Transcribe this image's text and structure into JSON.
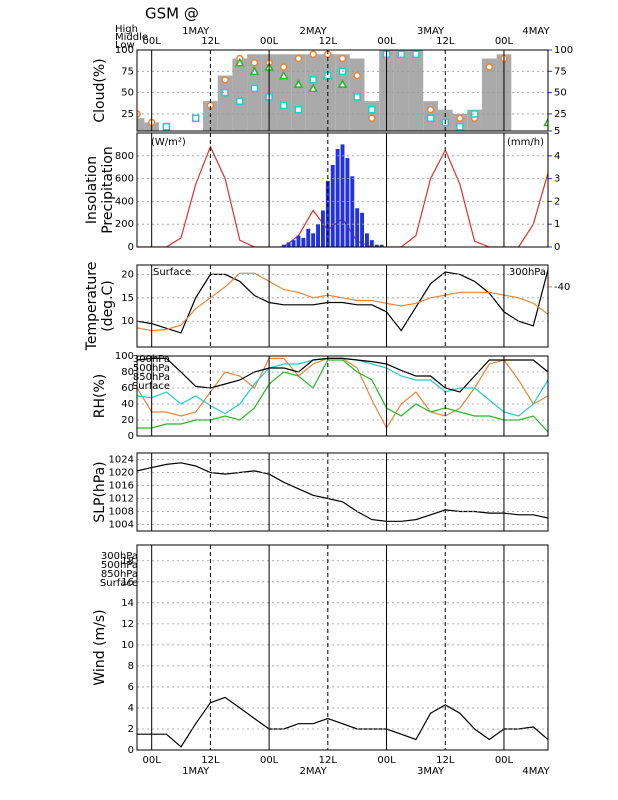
{
  "chart_data": {
    "title": "GSM @",
    "xlim": [
      -3,
      81
    ],
    "x": [
      -3,
      0,
      3,
      6,
      9,
      12,
      15,
      18,
      21,
      24,
      27,
      30,
      33,
      36,
      39,
      42,
      45,
      48,
      51,
      54,
      57,
      60,
      63,
      66,
      69,
      72,
      75,
      78,
      81
    ],
    "xticks": [
      {
        "value": 0,
        "label": "00L"
      },
      {
        "value": 12,
        "label": "12L"
      },
      {
        "value": 24,
        "label": "00L"
      },
      {
        "value": 36,
        "label": "12L"
      },
      {
        "value": 48,
        "label": "00L"
      },
      {
        "value": 60,
        "label": "12L"
      },
      {
        "value": 72,
        "label": "00L"
      }
    ],
    "date_ticks": [
      {
        "value": 9,
        "label": "1MAY"
      },
      {
        "value": 33,
        "label": "2MAY"
      },
      {
        "value": 57,
        "label": "3MAY"
      },
      {
        "value": 81,
        "label": "4MAY"
      }
    ],
    "panels": [
      {
        "type": "cloud",
        "ylabel": [
          "Cloud(%)"
        ],
        "ylim": [
          5,
          100
        ],
        "yticks": [
          25,
          50,
          75,
          100
        ],
        "y2lim": [
          5,
          100
        ],
        "y2ticks": [
          5,
          25,
          50,
          75,
          100
        ],
        "y2color": "#2233dd",
        "total": {
          "color": "#aaaaaa",
          "values": [
            20,
            15,
            0,
            0,
            5,
            40,
            70,
            90,
            95,
            95,
            95,
            95,
            95,
            95,
            95,
            90,
            40,
            100,
            100,
            100,
            40,
            30,
            25,
            30,
            90,
            95,
            5,
            5,
            5
          ]
        },
        "series": [
          {
            "name": "High",
            "color": "#e8873a",
            "marker": "circle",
            "values": [
              25,
              15,
              null,
              null,
              null,
              35,
              65,
              90,
              85,
              85,
              80,
              90,
              95,
              95,
              90,
              70,
              20,
              null,
              null,
              null,
              30,
              15,
              20,
              20,
              80,
              90,
              null,
              null,
              null
            ]
          },
          {
            "name": "Middle",
            "color": "#22bb22",
            "marker": "triangle",
            "values": [
              null,
              null,
              null,
              null,
              null,
              null,
              null,
              85,
              75,
              80,
              70,
              60,
              55,
              70,
              60,
              null,
              null,
              null,
              null,
              null,
              null,
              null,
              null,
              null,
              null,
              null,
              null,
              null,
              15
            ]
          },
          {
            "name": "Low",
            "color": "#22cccc",
            "marker": "square",
            "values": [
              null,
              null,
              10,
              null,
              20,
              null,
              50,
              40,
              55,
              45,
              35,
              30,
              65,
              70,
              75,
              45,
              30,
              95,
              95,
              95,
              20,
              15,
              10,
              25,
              null,
              null,
              null,
              null,
              null
            ]
          }
        ]
      },
      {
        "type": "insolation",
        "ylabel": [
          "Insolation",
          "Precipitation"
        ],
        "ylim": [
          0,
          1000
        ],
        "yticks": [
          0,
          200,
          400,
          600,
          800
        ],
        "y2lim": [
          0,
          5
        ],
        "y2ticks": [
          0,
          1,
          2,
          3,
          4
        ],
        "y2color": "#2233dd",
        "series": [
          {
            "unit": "(W/m²)",
            "color": "#e03030",
            "kind": "line",
            "values": [
              0,
              0,
              0,
              80,
              550,
              880,
              600,
              60,
              0,
              0,
              0,
              100,
              320,
              150,
              250,
              50,
              0,
              0,
              0,
              100,
              600,
              850,
              550,
              50,
              0,
              0,
              0,
              200,
              650
            ]
          },
          {
            "unit": "(mm/h)",
            "color": "#2233dd",
            "kind": "bars",
            "axis": "y2",
            "x": [
              27,
              28,
              29,
              30,
              31,
              32,
              33,
              34,
              35,
              36,
              37,
              38,
              39,
              40,
              41,
              42,
              43,
              44,
              45,
              46,
              47
            ],
            "values": [
              0.1,
              0.2,
              0.3,
              0.5,
              0.4,
              0.8,
              0.6,
              1.0,
              1.6,
              2.9,
              3.6,
              4.3,
              4.5,
              3.9,
              3.1,
              1.7,
              1.5,
              0.6,
              0.3,
              0.1,
              0.1
            ]
          }
        ]
      },
      {
        "type": "lines",
        "ylabel": [
          "Temperature",
          "(deg.C)"
        ],
        "ylim": [
          4.5,
          22
        ],
        "yticks": [
          10,
          15,
          20
        ],
        "y2lim": [
          -51,
          -36
        ],
        "y2ticks": [
          -40
        ],
        "y2color": "#e8873a",
        "legend": "corners",
        "series": [
          {
            "name": "Surface",
            "color": "#000000",
            "values": [
              10,
              9.5,
              8.5,
              7.5,
              15,
              20,
              20,
              18.5,
              15.5,
              14,
              13.5,
              13.5,
              13.5,
              14,
              14,
              13.5,
              13.5,
              12,
              8,
              13,
              18,
              20.5,
              20,
              18.5,
              16,
              12,
              10,
              9,
              21
            ]
          },
          {
            "name": "300hPa",
            "color": "#e8873a",
            "axis": "y2",
            "values": [
              -47.5,
              -48,
              -47.8,
              -47,
              -44,
              -42,
              -40,
              -37.5,
              -37.5,
              -39,
              -40.5,
              -41,
              -42,
              -41.5,
              -42,
              -42.5,
              -42.5,
              -43,
              -43.5,
              -43,
              -42,
              -41.5,
              -41,
              -41,
              -41,
              -41.5,
              -42,
              -43,
              -45
            ]
          }
        ]
      },
      {
        "type": "lines",
        "ylabel": [
          "RH(%)"
        ],
        "ylim": [
          0,
          100
        ],
        "yticks": [
          0,
          20,
          40,
          60,
          80,
          100
        ],
        "legend": "stack",
        "series": [
          {
            "name": "300hPa",
            "color": "#e8873a",
            "values": [
              60,
              30,
              30,
              25,
              30,
              55,
              80,
              75,
              60,
              97,
              97,
              75,
              90,
              97,
              97,
              85,
              45,
              10,
              40,
              55,
              30,
              25,
              35,
              60,
              90,
              95,
              70,
              40,
              50
            ]
          },
          {
            "name": "500hPa",
            "color": "#22bb22",
            "values": [
              10,
              10,
              15,
              15,
              20,
              20,
              25,
              20,
              35,
              65,
              80,
              75,
              60,
              95,
              95,
              80,
              70,
              35,
              25,
              40,
              30,
              35,
              30,
              25,
              25,
              20,
              20,
              25,
              5
            ]
          },
          {
            "name": "850hPa",
            "color": "#22cccc",
            "values": [
              50,
              48,
              55,
              40,
              50,
              38,
              28,
              40,
              65,
              85,
              90,
              90,
              95,
              97,
              97,
              95,
              90,
              85,
              75,
              70,
              70,
              55,
              60,
              60,
              45,
              30,
              25,
              40,
              70
            ]
          },
          {
            "name": "Surface",
            "color": "#000000",
            "values": [
              95,
              97,
              97,
              80,
              62,
              60,
              65,
              70,
              80,
              85,
              85,
              80,
              95,
              97,
              97,
              95,
              93,
              90,
              82,
              75,
              75,
              60,
              55,
              75,
              95,
              95,
              95,
              95,
              80
            ]
          }
        ]
      },
      {
        "type": "lines",
        "ylabel": [
          "SLP(hPa)"
        ],
        "ylim": [
          1002,
          1026
        ],
        "yticks": [
          1004,
          1008,
          1012,
          1016,
          1020,
          1024
        ],
        "series": [
          {
            "color": "#000000",
            "values": [
              1020.5,
              1021.5,
              1022.5,
              1023,
              1022,
              1020,
              1019.5,
              1020,
              1020.5,
              1019.5,
              1017,
              1015,
              1013,
              1012,
              1011,
              1008,
              1005.5,
              1005,
              1005,
              1005.5,
              1007,
              1008.5,
              1008,
              1008,
              1007.5,
              1007.5,
              1007,
              1007,
              1006
            ]
          }
        ]
      },
      {
        "type": "lines",
        "ylabel": [
          "Wind  (m/s)"
        ],
        "ylim": [
          0,
          19.5
        ],
        "yticks": [
          0,
          2,
          4,
          6,
          8,
          10,
          12,
          14,
          16,
          18
        ],
        "legend": "stack",
        "legend_entries": [
          {
            "name": "300hPa",
            "color": "#e8873a"
          },
          {
            "name": "500hPa",
            "color": "#22bb22"
          },
          {
            "name": "850hPa",
            "color": "#22cccc"
          },
          {
            "name": "Surface",
            "color": "#000000"
          }
        ],
        "series": [
          {
            "color": "#000000",
            "values": [
              1.5,
              1.5,
              1.5,
              0.3,
              2.5,
              4.5,
              5,
              4,
              3,
              2,
              2,
              2.5,
              2.5,
              3,
              2.5,
              2,
              2,
              2,
              1.5,
              1,
              3.5,
              4.3,
              3.5,
              2,
              1,
              2,
              2,
              2.2,
              1
            ]
          }
        ]
      }
    ]
  }
}
